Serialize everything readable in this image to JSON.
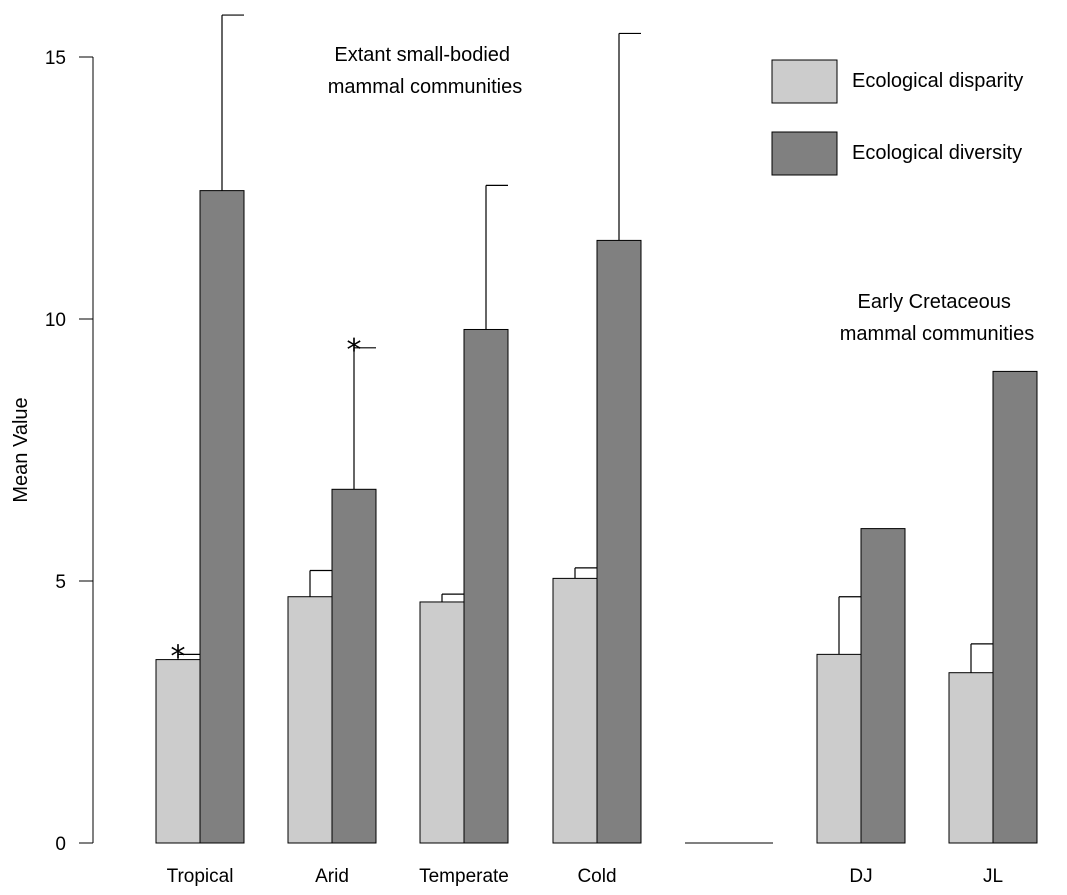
{
  "chart_data": {
    "type": "bar",
    "ylabel": "Mean Value",
    "ylim": [
      0,
      15
    ],
    "yticks": [
      "0",
      "5",
      "10",
      "15"
    ],
    "categories": [
      "Tropical",
      "Arid",
      "Temperate",
      "Cold",
      "",
      "DJ",
      "JL"
    ],
    "series": [
      {
        "name": "Ecological disparity",
        "color": "#cccccc",
        "values": [
          3.5,
          4.7,
          4.6,
          5.05,
          null,
          3.6,
          3.25
        ],
        "error_upper": [
          3.6,
          5.2,
          4.75,
          5.25,
          null,
          4.7,
          3.8
        ]
      },
      {
        "name": "Ecological diversity",
        "color": "#808080",
        "values": [
          12.45,
          6.75,
          9.8,
          11.5,
          null,
          6.0,
          9.0
        ],
        "error_upper": [
          15.8,
          9.45,
          12.55,
          15.45,
          null,
          null,
          null
        ]
      }
    ],
    "significance_markers": [
      {
        "category": "Tropical",
        "series": "Ecological disparity",
        "mark": "*"
      },
      {
        "category": "Arid",
        "series": "Ecological diversity",
        "mark": "*"
      }
    ],
    "annotations": [
      {
        "lines": [
          "Extant small-bodied",
          "mammal communities"
        ]
      },
      {
        "lines": [
          "Early Cretaceous",
          "mammal communities"
        ]
      }
    ],
    "legend": {
      "placement": "top-right",
      "items": [
        "Ecological disparity",
        "Ecological diversity"
      ]
    },
    "grid": false
  }
}
